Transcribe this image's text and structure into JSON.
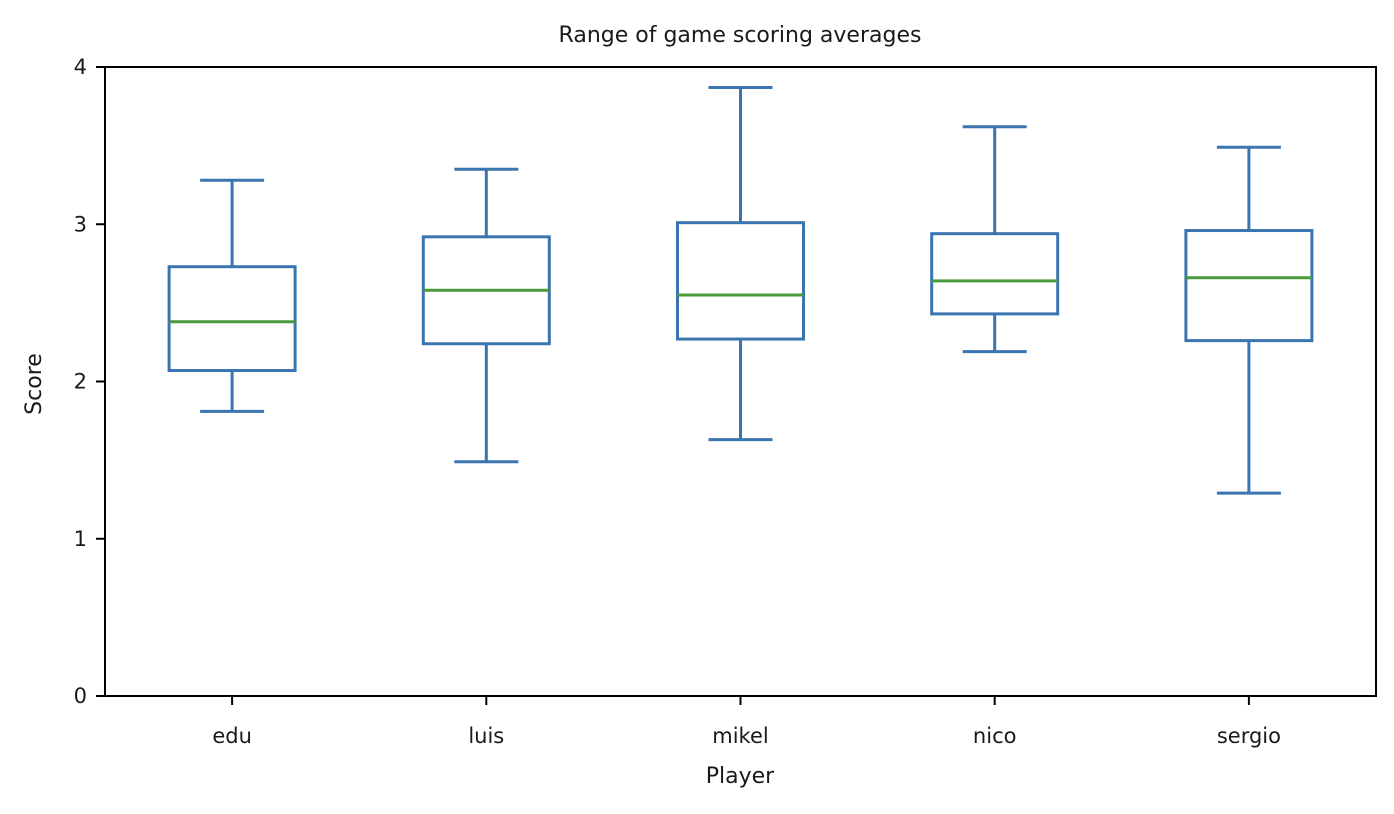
{
  "chart_data": {
    "type": "box",
    "title": "Range of game scoring averages",
    "xlabel": "Player",
    "ylabel": "Score",
    "ylim": [
      0,
      4
    ],
    "yticks": [
      0,
      1,
      2,
      3,
      4
    ],
    "categories": [
      "edu",
      "luis",
      "mikel",
      "nico",
      "sergio"
    ],
    "boxes": [
      {
        "category": "edu",
        "whisker_low": 1.81,
        "q1": 2.07,
        "median": 2.38,
        "q3": 2.73,
        "whisker_high": 3.28
      },
      {
        "category": "luis",
        "whisker_low": 1.49,
        "q1": 2.24,
        "median": 2.58,
        "q3": 2.92,
        "whisker_high": 3.35
      },
      {
        "category": "mikel",
        "whisker_low": 1.63,
        "q1": 2.27,
        "median": 2.55,
        "q3": 3.01,
        "whisker_high": 3.87
      },
      {
        "category": "nico",
        "whisker_low": 2.19,
        "q1": 2.43,
        "median": 2.64,
        "q3": 2.94,
        "whisker_high": 3.62
      },
      {
        "category": "sergio",
        "whisker_low": 1.29,
        "q1": 2.26,
        "median": 2.66,
        "q3": 2.96,
        "whisker_high": 3.49
      }
    ],
    "colors": {
      "box": "#3a75b0",
      "median": "#4a9a3b",
      "axis": "#000000"
    },
    "grid": false,
    "legend": "none"
  }
}
